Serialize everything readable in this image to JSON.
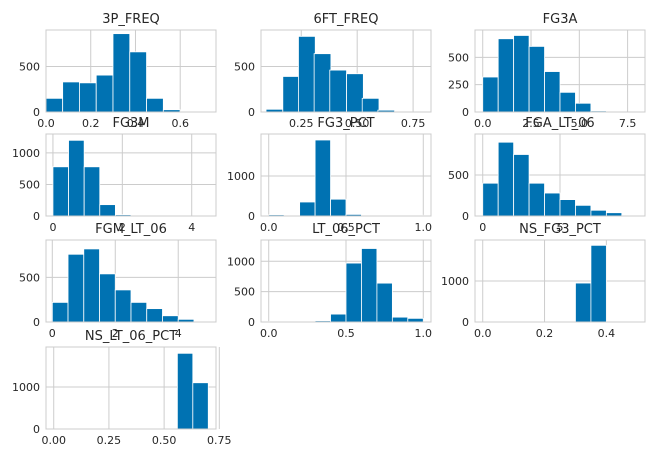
{
  "chart_data": [
    {
      "type": "bar",
      "title": "3P_FREQ",
      "x": [
        0.037,
        0.112,
        0.187,
        0.262,
        0.337,
        0.412,
        0.487,
        0.562,
        0.637,
        0.712
      ],
      "values": [
        150,
        330,
        320,
        405,
        860,
        660,
        150,
        25,
        8,
        3
      ],
      "xlim": [
        0,
        0.76
      ],
      "ylim": [
        0,
        900
      ],
      "xticks": [
        0.0,
        0.2,
        0.4,
        0.6
      ],
      "xtick_labels": [
        "0.0",
        "0.2",
        "0.4",
        "0.6"
      ],
      "yticks": [
        0,
        500
      ],
      "ytick_labels": [
        "0",
        "500"
      ]
    },
    {
      "type": "bar",
      "title": "6FT_FREQ",
      "x": [
        0.13,
        0.205,
        0.275,
        0.345,
        0.415,
        0.49,
        0.56,
        0.63,
        0.705,
        0.775
      ],
      "values": [
        30,
        390,
        830,
        640,
        460,
        420,
        150,
        20,
        5,
        2
      ],
      "xlim": [
        0.07,
        0.83
      ],
      "ylim": [
        0,
        900
      ],
      "xticks": [
        0.25,
        0.5,
        0.75
      ],
      "xtick_labels": [
        "0.25",
        "0.50",
        "0.75"
      ],
      "yticks": [
        0,
        500
      ],
      "ytick_labels": [
        "0",
        "500"
      ]
    },
    {
      "type": "bar",
      "title": "FG3A",
      "x": [
        0.4,
        1.2,
        2.0,
        2.8,
        3.6,
        4.4,
        5.2,
        6.0,
        6.8,
        7.6
      ],
      "values": [
        320,
        670,
        700,
        600,
        370,
        180,
        80,
        10,
        2,
        1
      ],
      "xlim": [
        -0.4,
        8.4
      ],
      "ylim": [
        0,
        750
      ],
      "xticks": [
        0.0,
        2.5,
        5.0,
        7.5
      ],
      "xtick_labels": [
        "0.0",
        "2.5",
        "5.0",
        "7.5"
      ],
      "yticks": [
        0,
        250,
        500
      ],
      "ytick_labels": [
        "0",
        "250",
        "500"
      ]
    },
    {
      "type": "bar",
      "title": "FG3M",
      "x": [
        0.225,
        0.675,
        1.125,
        1.575,
        2.025,
        2.475,
        2.925,
        3.375,
        3.825,
        4.275
      ],
      "values": [
        780,
        1200,
        780,
        180,
        20,
        5,
        2,
        1,
        0,
        0
      ],
      "xlim": [
        -0.2,
        4.7
      ],
      "ylim": [
        0,
        1300
      ],
      "xticks": [
        0,
        2,
        4
      ],
      "xtick_labels": [
        "0",
        "2",
        "4"
      ],
      "yticks": [
        0,
        500,
        1000
      ],
      "ytick_labels": [
        "0",
        "500",
        "1000"
      ]
    },
    {
      "type": "bar",
      "title": "FG3_PCT",
      "x": [
        0.05,
        0.15,
        0.25,
        0.35,
        0.45,
        0.55,
        0.65,
        0.75,
        0.85,
        0.95
      ],
      "values": [
        30,
        10,
        350,
        1900,
        420,
        40,
        10,
        5,
        10,
        20
      ],
      "xlim": [
        -0.05,
        1.05
      ],
      "ylim": [
        0,
        2050
      ],
      "xticks": [
        0.0,
        0.5,
        1.0
      ],
      "xtick_labels": [
        "0.0",
        "0.5",
        "1.0"
      ],
      "yticks": [
        0,
        1000
      ],
      "ytick_labels": [
        "0",
        "1000"
      ]
    },
    {
      "type": "bar",
      "title": "FGA_LT_06",
      "x": [
        0.5,
        1.5,
        2.5,
        3.5,
        4.5,
        5.5,
        6.5,
        7.5,
        8.5,
        9.5
      ],
      "values": [
        400,
        900,
        750,
        400,
        280,
        200,
        130,
        70,
        40,
        10
      ],
      "xlim": [
        -0.5,
        10.5
      ],
      "ylim": [
        0,
        1000
      ],
      "xticks": [
        0,
        5
      ],
      "xtick_labels": [
        "0",
        "5"
      ],
      "yticks": [
        0,
        500
      ],
      "ytick_labels": [
        "0",
        "500"
      ]
    },
    {
      "type": "bar",
      "title": "FGM_LT_06",
      "x": [
        0.25,
        0.75,
        1.25,
        1.75,
        2.25,
        2.75,
        3.25,
        3.75,
        4.25,
        4.75
      ],
      "values": [
        220,
        760,
        820,
        540,
        360,
        220,
        150,
        70,
        30,
        5
      ],
      "xlim": [
        -0.2,
        5.2
      ],
      "ylim": [
        0,
        920
      ],
      "xticks": [
        0,
        2,
        4
      ],
      "xtick_labels": [
        "0",
        "2",
        "4"
      ],
      "yticks": [
        0,
        500
      ],
      "ytick_labels": [
        "0",
        "500"
      ]
    },
    {
      "type": "bar",
      "title": "LT_06_PCT",
      "x": [
        0.05,
        0.15,
        0.25,
        0.35,
        0.45,
        0.55,
        0.65,
        0.75,
        0.85,
        0.95
      ],
      "values": [
        10,
        10,
        10,
        20,
        130,
        970,
        1210,
        640,
        80,
        60
      ],
      "xlim": [
        -0.05,
        1.05
      ],
      "ylim": [
        0,
        1350
      ],
      "xticks": [
        0.0,
        0.5,
        1.0
      ],
      "xtick_labels": [
        "0.0",
        "0.5",
        "1.0"
      ],
      "yticks": [
        0,
        500,
        1000
      ],
      "ytick_labels": [
        "0",
        "500",
        "1000"
      ]
    },
    {
      "type": "bar",
      "title": "NS_FG3_PCT",
      "x": [
        0.025,
        0.075,
        0.125,
        0.175,
        0.225,
        0.275,
        0.325,
        0.375,
        0.425,
        0.475
      ],
      "values": [
        0,
        0,
        0,
        0,
        0,
        5,
        950,
        1870,
        15,
        0
      ],
      "xlim": [
        -0.025,
        0.525
      ],
      "ylim": [
        0,
        2000
      ],
      "xticks": [
        0.0,
        0.2,
        0.4
      ],
      "xtick_labels": [
        "0.0",
        "0.2",
        "0.4"
      ],
      "yticks": [
        0,
        1000
      ],
      "ytick_labels": [
        "0",
        "1000"
      ]
    },
    {
      "type": "bar",
      "title": "NS_LT_06_PCT",
      "x": [
        0.035,
        0.105,
        0.175,
        0.245,
        0.315,
        0.385,
        0.455,
        0.525,
        0.595,
        0.665
      ],
      "values": [
        0,
        0,
        0,
        0,
        0,
        0,
        0,
        0,
        1800,
        1100
      ],
      "xlim": [
        -0.035,
        0.735
      ],
      "ylim": [
        0,
        1950
      ],
      "xticks": [
        0.0,
        0.25,
        0.5,
        0.75
      ],
      "xtick_labels": [
        "0.00",
        "0.25",
        "0.50",
        "0.75"
      ],
      "yticks": [
        0,
        1000
      ],
      "ytick_labels": [
        "0",
        "1000"
      ]
    }
  ],
  "colors": {
    "bar_fill": "#0072b2",
    "bar_edge": "#ffffff",
    "grid": "#cccccc",
    "axes_edge": "#cccccc",
    "text": "#262626"
  }
}
